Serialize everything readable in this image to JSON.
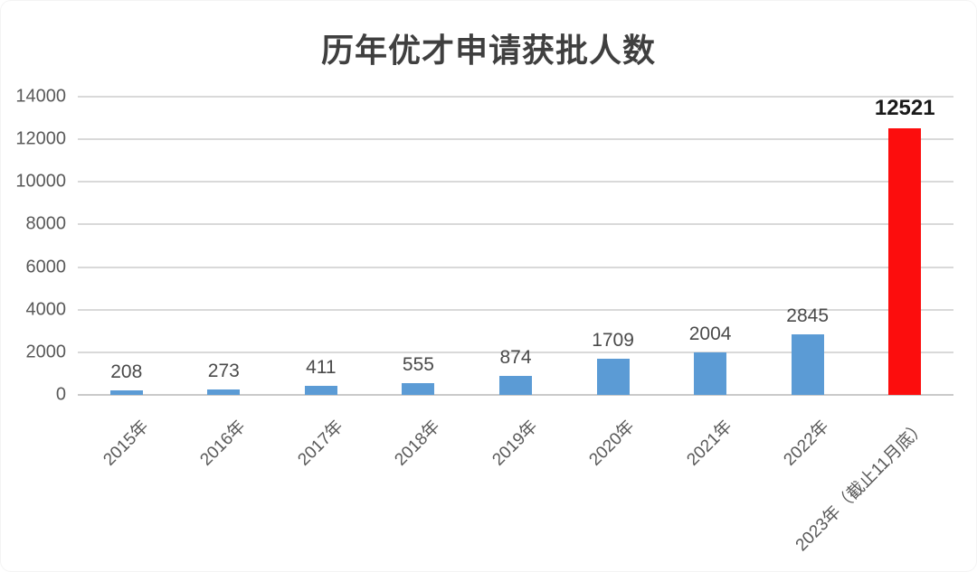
{
  "chart_data": {
    "type": "bar",
    "title": "历年优才申请获批人数",
    "categories": [
      "2015年",
      "2016年",
      "2017年",
      "2018年",
      "2019年",
      "2020年",
      "2021年",
      "2022年",
      "2023年（截止11月底）"
    ],
    "values": [
      208,
      273,
      411,
      555,
      874,
      1709,
      2004,
      2845,
      12521
    ],
    "data_labels": [
      "208",
      "273",
      "411",
      "555",
      "874",
      "1709",
      "2004",
      "2845",
      "12521"
    ],
    "highlight_index": 8,
    "bar_color_default": "#5B9BD5",
    "bar_color_highlight": "#FC0D0D",
    "xlabel": "",
    "ylabel": "",
    "ylim": [
      0,
      14000
    ],
    "yticks": [
      0,
      2000,
      4000,
      6000,
      8000,
      10000,
      12000,
      14000
    ],
    "grid": "horizontal",
    "legend": "none"
  }
}
